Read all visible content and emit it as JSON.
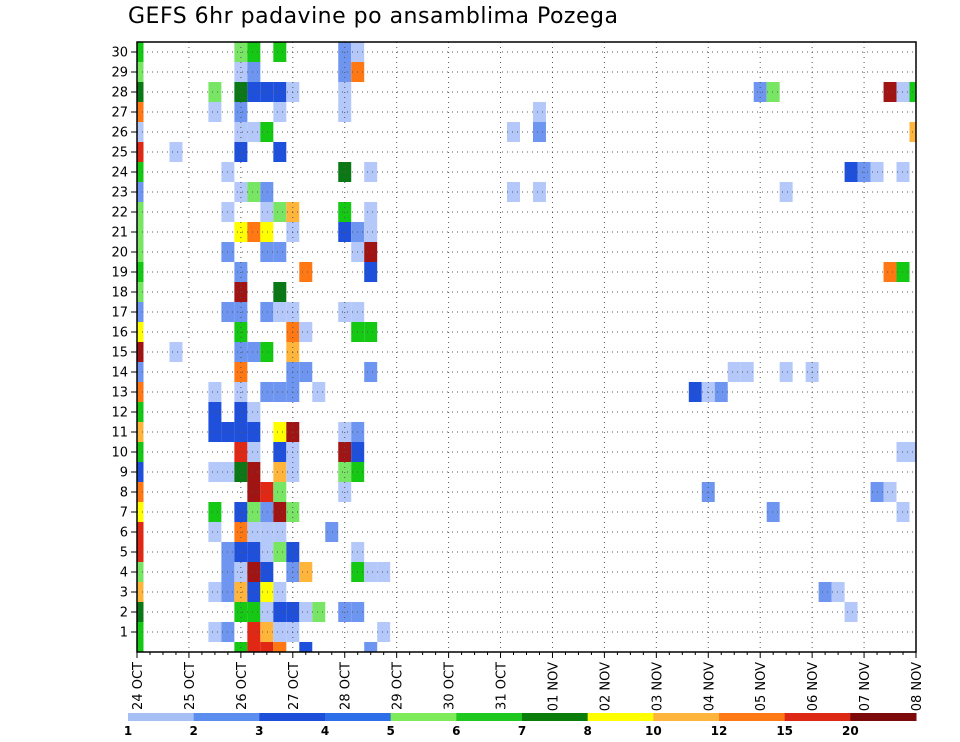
{
  "chart_data": {
    "type": "heatmap",
    "title": "GEFS 6hr padavine po ansamblima Pozega",
    "y_ticks": [
      "1",
      "2",
      "3",
      "4",
      "5",
      "6",
      "7",
      "8",
      "9",
      "10",
      "11",
      "12",
      "13",
      "14",
      "15",
      "16",
      "17",
      "18",
      "19",
      "20",
      "21",
      "22",
      "23",
      "24",
      "25",
      "26",
      "27",
      "28",
      "29",
      "30"
    ],
    "x_ticks": [
      "24 OCT",
      "25 OCT",
      "26 OCT",
      "27 OCT",
      "28 OCT",
      "29 OCT",
      "30 OCT",
      "31 OCT",
      "01 NOV",
      "02 NOV",
      "03 NOV",
      "04 NOV",
      "05 NOV",
      "06 NOV",
      "07 NOV",
      "08 NOV"
    ],
    "xlim_steps": [
      0,
      60
    ],
    "ylim_members": [
      0,
      30
    ],
    "legend": {
      "labels": [
        "1",
        "2",
        "3",
        "4",
        "5",
        "6",
        "7",
        "8",
        "10",
        "12",
        "15",
        "20"
      ],
      "colors": [
        "#a6c0f5",
        "#5c8ef0",
        "#1e4fd8",
        "#2d6fe8",
        "#7eec5a",
        "#1ec81e",
        "#0a7d0a",
        "#ffff00",
        "#ffb43c",
        "#ff7a14",
        "#dc2814",
        "#7d0a0a"
      ]
    },
    "cell_colors": {
      "1": "#b4c8fa",
      "2": "#6e96f0",
      "3": "#1e50dc",
      "5": "#78e664",
      "6": "#14c814",
      "7": "#0a7814",
      "8": "#ffff00",
      "10": "#ffb43c",
      "12": "#ff7814",
      "15": "#e12814",
      "20": "#a01414"
    },
    "cells": [
      [
        0,
        30,
        6
      ],
      [
        0,
        29,
        5
      ],
      [
        0,
        28,
        7
      ],
      [
        0,
        27,
        12
      ],
      [
        0,
        26,
        1
      ],
      [
        0,
        25,
        15
      ],
      [
        0,
        24,
        6
      ],
      [
        0,
        23,
        2
      ],
      [
        0,
        22,
        5
      ],
      [
        0,
        21,
        5
      ],
      [
        0,
        20,
        5
      ],
      [
        0,
        19,
        6
      ],
      [
        0,
        18,
        5
      ],
      [
        0,
        17,
        2
      ],
      [
        0,
        16,
        8
      ],
      [
        0,
        15,
        20
      ],
      [
        0,
        14,
        2
      ],
      [
        0,
        13,
        12
      ],
      [
        0,
        12,
        6
      ],
      [
        0,
        11,
        10
      ],
      [
        0,
        10,
        6
      ],
      [
        0,
        9,
        3
      ],
      [
        0,
        8,
        12
      ],
      [
        0,
        7,
        8
      ],
      [
        0,
        6,
        15
      ],
      [
        0,
        5,
        15
      ],
      [
        0,
        4,
        5
      ],
      [
        0,
        3,
        10
      ],
      [
        0,
        2,
        7
      ],
      [
        0,
        1,
        6
      ],
      [
        0,
        0,
        6
      ],
      [
        3,
        25,
        1
      ],
      [
        3,
        15,
        1
      ],
      [
        6,
        28,
        5
      ],
      [
        6,
        27,
        1
      ],
      [
        6,
        13,
        1
      ],
      [
        6,
        12,
        3
      ],
      [
        6,
        11,
        3
      ],
      [
        6,
        9,
        1
      ],
      [
        6,
        7,
        6
      ],
      [
        6,
        6,
        1
      ],
      [
        6,
        3,
        1
      ],
      [
        6,
        1,
        1
      ],
      [
        7,
        24,
        1
      ],
      [
        7,
        22,
        1
      ],
      [
        7,
        20,
        2
      ],
      [
        7,
        17,
        2
      ],
      [
        7,
        11,
        3
      ],
      [
        7,
        9,
        1
      ],
      [
        7,
        5,
        2
      ],
      [
        7,
        4,
        2
      ],
      [
        7,
        3,
        2
      ],
      [
        7,
        1,
        2
      ],
      [
        8,
        30,
        5
      ],
      [
        8,
        29,
        1
      ],
      [
        8,
        28,
        7
      ],
      [
        8,
        27,
        2
      ],
      [
        8,
        26,
        1
      ],
      [
        8,
        25,
        3
      ],
      [
        8,
        23,
        1
      ],
      [
        8,
        21,
        8
      ],
      [
        8,
        19,
        2
      ],
      [
        8,
        18,
        20
      ],
      [
        8,
        17,
        2
      ],
      [
        8,
        16,
        6
      ],
      [
        8,
        15,
        2
      ],
      [
        8,
        14,
        12
      ],
      [
        8,
        13,
        1
      ],
      [
        8,
        12,
        3
      ],
      [
        8,
        11,
        3
      ],
      [
        8,
        10,
        15
      ],
      [
        8,
        9,
        7
      ],
      [
        8,
        7,
        3
      ],
      [
        8,
        6,
        12
      ],
      [
        8,
        5,
        3
      ],
      [
        8,
        4,
        1
      ],
      [
        8,
        3,
        10
      ],
      [
        8,
        2,
        6
      ],
      [
        8,
        0,
        6
      ],
      [
        9,
        30,
        6
      ],
      [
        9,
        29,
        2
      ],
      [
        9,
        28,
        3
      ],
      [
        9,
        26,
        1
      ],
      [
        9,
        23,
        5
      ],
      [
        9,
        21,
        12
      ],
      [
        9,
        15,
        2
      ],
      [
        9,
        12,
        1
      ],
      [
        9,
        11,
        3
      ],
      [
        9,
        10,
        1
      ],
      [
        9,
        9,
        20
      ],
      [
        9,
        8,
        20
      ],
      [
        9,
        7,
        5
      ],
      [
        9,
        6,
        1
      ],
      [
        9,
        5,
        3
      ],
      [
        9,
        4,
        20
      ],
      [
        9,
        3,
        3
      ],
      [
        9,
        2,
        6
      ],
      [
        9,
        1,
        15
      ],
      [
        9,
        0,
        15
      ],
      [
        10,
        28,
        3
      ],
      [
        10,
        26,
        6
      ],
      [
        10,
        23,
        2
      ],
      [
        10,
        22,
        1
      ],
      [
        10,
        21,
        8
      ],
      [
        10,
        20,
        2
      ],
      [
        10,
        17,
        2
      ],
      [
        10,
        15,
        6
      ],
      [
        10,
        13,
        2
      ],
      [
        10,
        8,
        15
      ],
      [
        10,
        7,
        2
      ],
      [
        10,
        6,
        1
      ],
      [
        10,
        5,
        1
      ],
      [
        10,
        4,
        3
      ],
      [
        10,
        3,
        8
      ],
      [
        10,
        2,
        1
      ],
      [
        10,
        1,
        10
      ],
      [
        10,
        0,
        15
      ],
      [
        11,
        30,
        6
      ],
      [
        11,
        28,
        3
      ],
      [
        11,
        27,
        1
      ],
      [
        11,
        25,
        3
      ],
      [
        11,
        22,
        5
      ],
      [
        11,
        20,
        2
      ],
      [
        11,
        18,
        7
      ],
      [
        11,
        17,
        1
      ],
      [
        11,
        13,
        2
      ],
      [
        11,
        11,
        8
      ],
      [
        11,
        10,
        3
      ],
      [
        11,
        9,
        10
      ],
      [
        11,
        8,
        5
      ],
      [
        11,
        7,
        20
      ],
      [
        11,
        6,
        1
      ],
      [
        11,
        5,
        5
      ],
      [
        11,
        3,
        1
      ],
      [
        11,
        2,
        3
      ],
      [
        11,
        1,
        1
      ],
      [
        11,
        0,
        12
      ],
      [
        12,
        28,
        1
      ],
      [
        12,
        22,
        10
      ],
      [
        12,
        21,
        1
      ],
      [
        12,
        17,
        1
      ],
      [
        12,
        16,
        12
      ],
      [
        12,
        15,
        10
      ],
      [
        12,
        14,
        2
      ],
      [
        12,
        13,
        2
      ],
      [
        12,
        11,
        20
      ],
      [
        12,
        10,
        1
      ],
      [
        12,
        9,
        1
      ],
      [
        12,
        7,
        5
      ],
      [
        12,
        5,
        3
      ],
      [
        12,
        4,
        2
      ],
      [
        12,
        2,
        3
      ],
      [
        12,
        1,
        1
      ],
      [
        13,
        19,
        12
      ],
      [
        13,
        16,
        1
      ],
      [
        13,
        14,
        2
      ],
      [
        13,
        4,
        10
      ],
      [
        13,
        2,
        1
      ],
      [
        13,
        0,
        3
      ],
      [
        14,
        13,
        1
      ],
      [
        14,
        2,
        5
      ],
      [
        15,
        6,
        2
      ],
      [
        16,
        30,
        2
      ],
      [
        16,
        29,
        2
      ],
      [
        16,
        28,
        1
      ],
      [
        16,
        27,
        1
      ],
      [
        16,
        24,
        7
      ],
      [
        16,
        22,
        6
      ],
      [
        16,
        21,
        3
      ],
      [
        16,
        17,
        1
      ],
      [
        16,
        11,
        1
      ],
      [
        16,
        10,
        20
      ],
      [
        16,
        9,
        5
      ],
      [
        16,
        8,
        1
      ],
      [
        16,
        2,
        2
      ],
      [
        17,
        30,
        1
      ],
      [
        17,
        29,
        12
      ],
      [
        17,
        21,
        2
      ],
      [
        17,
        20,
        1
      ],
      [
        17,
        17,
        1
      ],
      [
        17,
        16,
        6
      ],
      [
        17,
        11,
        2
      ],
      [
        17,
        10,
        3
      ],
      [
        17,
        9,
        6
      ],
      [
        17,
        5,
        1
      ],
      [
        17,
        4,
        6
      ],
      [
        17,
        2,
        2
      ],
      [
        18,
        24,
        1
      ],
      [
        18,
        22,
        1
      ],
      [
        18,
        21,
        1
      ],
      [
        18,
        20,
        20
      ],
      [
        18,
        19,
        3
      ],
      [
        18,
        16,
        6
      ],
      [
        18,
        14,
        2
      ],
      [
        18,
        4,
        1
      ],
      [
        18,
        0,
        2
      ],
      [
        19,
        4,
        1
      ],
      [
        19,
        1,
        1
      ],
      [
        29,
        26,
        1
      ],
      [
        29,
        23,
        1
      ],
      [
        31,
        27,
        1
      ],
      [
        31,
        26,
        2
      ],
      [
        31,
        23,
        1
      ],
      [
        43,
        13,
        3
      ],
      [
        44,
        13,
        1
      ],
      [
        44,
        8,
        2
      ],
      [
        45,
        13,
        2
      ],
      [
        46,
        14,
        1
      ],
      [
        47,
        14,
        1
      ],
      [
        48,
        28,
        2
      ],
      [
        49,
        28,
        5
      ],
      [
        49,
        7,
        2
      ],
      [
        50,
        23,
        1
      ],
      [
        50,
        14,
        1
      ],
      [
        52,
        14,
        1
      ],
      [
        53,
        3,
        2
      ],
      [
        54,
        3,
        1
      ],
      [
        55,
        24,
        3
      ],
      [
        55,
        2,
        1
      ],
      [
        56,
        24,
        2
      ],
      [
        57,
        24,
        1
      ],
      [
        57,
        8,
        2
      ],
      [
        58,
        28,
        20
      ],
      [
        58,
        19,
        12
      ],
      [
        58,
        8,
        1
      ],
      [
        59,
        28,
        1
      ],
      [
        59,
        24,
        1
      ],
      [
        59,
        19,
        6
      ],
      [
        59,
        10,
        1
      ],
      [
        59,
        7,
        1
      ],
      [
        60,
        28,
        6
      ],
      [
        60,
        26,
        10
      ],
      [
        60,
        10,
        1
      ]
    ]
  }
}
